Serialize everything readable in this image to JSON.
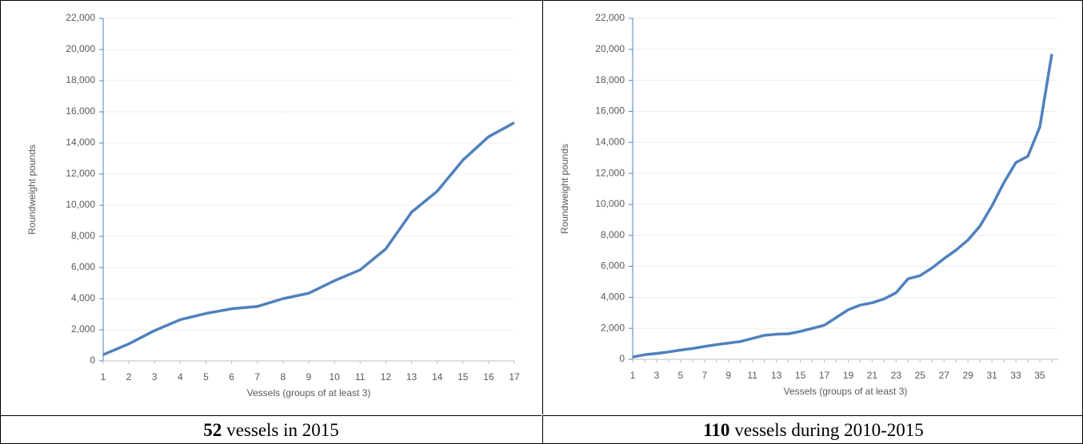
{
  "chart_data": [
    {
      "type": "line",
      "y_label": "Roundweight pounds",
      "x_label": "Vessels (groups of at least 3)",
      "color": "#4f81bd",
      "grid": true,
      "categories": [
        "1",
        "2",
        "3",
        "4",
        "5",
        "6",
        "7",
        "8",
        "9",
        "10",
        "11",
        "12",
        "13",
        "14",
        "15",
        "16",
        "17"
      ],
      "values": [
        400,
        1100,
        1950,
        2650,
        3050,
        3350,
        3500,
        4000,
        4350,
        5150,
        5850,
        7200,
        9550,
        10900,
        12900,
        14400,
        15300
      ],
      "ylim": [
        0,
        22000
      ],
      "yticks": [
        0,
        {
          "value": 2000,
          "label": "2,000"
        },
        {
          "value": 4000,
          "label": "4,000"
        },
        {
          "value": 6000,
          "label": "6,000"
        },
        {
          "value": 8000,
          "label": "8,000"
        },
        {
          "value": 10000,
          "label": "10,000"
        },
        {
          "value": 12000,
          "label": "12,000"
        },
        {
          "value": 14000,
          "label": "14,000"
        },
        {
          "value": 16000,
          "label": "16,000"
        },
        {
          "value": 18000,
          "label": "18,000"
        },
        {
          "value": 20000,
          "label": "20,000"
        },
        {
          "value": 22000,
          "label": "22,000"
        }
      ]
    },
    {
      "type": "line",
      "y_label": "Roundweight pounds",
      "x_label": "Vessels (groups of at least 3)",
      "color": "#4f81bd",
      "grid": true,
      "categories": [
        "1",
        null,
        "3",
        null,
        "5",
        null,
        "7",
        null,
        "9",
        null,
        "11",
        null,
        "13",
        null,
        "15",
        null,
        "17",
        null,
        "19",
        null,
        "21",
        null,
        "23",
        null,
        "25",
        null,
        "27",
        null,
        "29",
        null,
        "31",
        null,
        "33",
        null,
        "35",
        null
      ],
      "values": [
        150,
        300,
        380,
        480,
        600,
        700,
        830,
        950,
        1050,
        1150,
        1350,
        1550,
        1620,
        1650,
        1800,
        2000,
        2200,
        2700,
        3200,
        3500,
        3650,
        3900,
        4300,
        5200,
        5400,
        5900,
        6500,
        7050,
        7700,
        8600,
        9900,
        11400,
        12700,
        13100,
        15000,
        19700
      ],
      "ylim": [
        0,
        22000
      ],
      "yticks": [
        0,
        {
          "value": 2000,
          "label": "2,000"
        },
        {
          "value": 4000,
          "label": "4,000"
        },
        {
          "value": 6000,
          "label": "6,000"
        },
        {
          "value": 8000,
          "label": "8,000"
        },
        {
          "value": 10000,
          "label": "10,000"
        },
        {
          "value": 12000,
          "label": "12,000"
        },
        {
          "value": 14000,
          "label": "14,000"
        },
        {
          "value": 16000,
          "label": "16,000"
        },
        {
          "value": 18000,
          "label": "18,000"
        },
        {
          "value": 20000,
          "label": "20,000"
        },
        {
          "value": 22000,
          "label": "22,000"
        }
      ]
    }
  ],
  "captions": [
    {
      "number": "52",
      "text": "vessels in 2015"
    },
    {
      "number": "110",
      "text": "vessels during 2010-2015"
    }
  ]
}
